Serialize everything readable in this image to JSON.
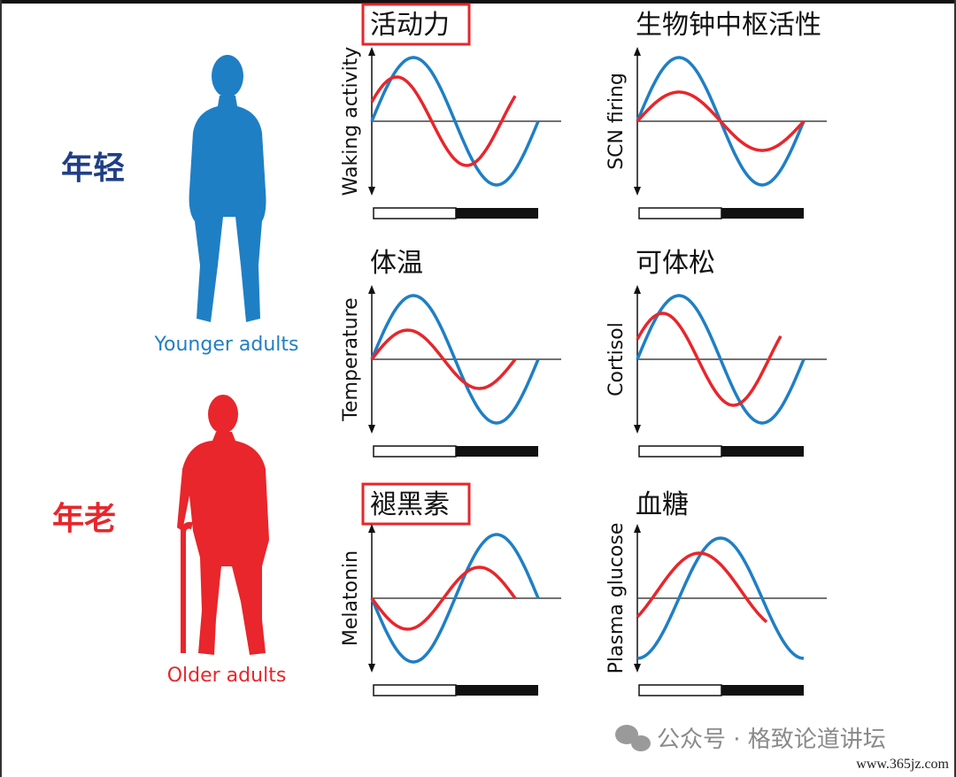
{
  "groups": {
    "young": "年轻",
    "old": "年老"
  },
  "figures": {
    "young": "Younger adults",
    "old": "Older adults"
  },
  "panels": [
    {
      "title": "活动力",
      "axis_label": "Waking activity",
      "highlighted": true
    },
    {
      "title": "生物钟中枢活性",
      "axis_label": "SCN firing",
      "highlighted": false
    },
    {
      "title": "体温",
      "axis_label": "Temperature",
      "highlighted": false
    },
    {
      "title": "可体松",
      "axis_label": "Cortisol",
      "highlighted": false
    },
    {
      "title": "褪黑素",
      "axis_label": "Melatonin",
      "highlighted": true
    },
    {
      "title": "血糖",
      "axis_label": "Plasma glucose",
      "highlighted": false
    }
  ],
  "watermark": {
    "text": "公众号 · 格致论道讲坛",
    "url": "www.365jz.com"
  }
}
